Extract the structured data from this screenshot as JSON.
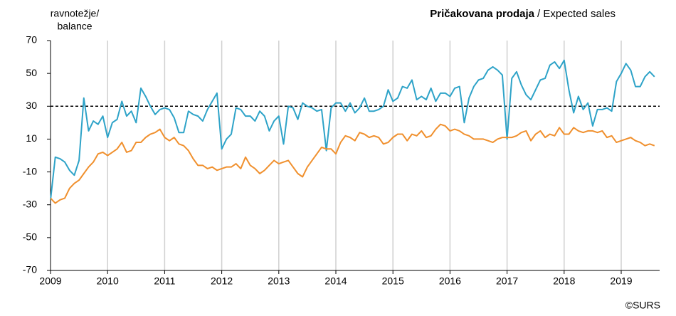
{
  "chart_data": {
    "type": "line",
    "title": {
      "main": "Pričakovana prodaja",
      "sub": "/ Expected sales"
    },
    "y_label": [
      "ravnotežje/",
      "balance"
    ],
    "source": "©SURS",
    "categories": [
      "2009",
      null,
      null,
      null,
      null,
      null,
      null,
      null,
      null,
      null,
      null,
      null,
      "2010",
      null,
      null,
      null,
      null,
      null,
      null,
      null,
      null,
      null,
      null,
      null,
      "2011",
      null,
      null,
      null,
      null,
      null,
      null,
      null,
      null,
      null,
      null,
      null,
      "2012",
      null,
      null,
      null,
      null,
      null,
      null,
      null,
      null,
      null,
      null,
      null,
      "2013",
      null,
      null,
      null,
      null,
      null,
      null,
      null,
      null,
      null,
      null,
      null,
      "2014",
      null,
      null,
      null,
      null,
      null,
      null,
      null,
      null,
      null,
      null,
      null,
      "2015",
      null,
      null,
      null,
      null,
      null,
      null,
      null,
      null,
      null,
      null,
      null,
      "2016",
      null,
      null,
      null,
      null,
      null,
      null,
      null,
      null,
      null,
      null,
      null,
      "2017",
      null,
      null,
      null,
      null,
      null,
      null,
      null,
      null,
      null,
      null,
      null,
      "2018",
      null,
      null,
      null,
      null,
      null,
      null,
      null,
      null,
      null,
      null,
      null,
      "2019",
      null,
      null,
      null,
      null,
      null,
      null,
      null
    ],
    "series": [
      {
        "color": "#2ea3c8",
        "values": [
          -27,
          -1,
          -2,
          -4,
          -9,
          -12,
          -3,
          35,
          15,
          21,
          19,
          24,
          11,
          20,
          22,
          33,
          24,
          27,
          20,
          41,
          36,
          30,
          25,
          28,
          29,
          28,
          23,
          14,
          14,
          27,
          25,
          24,
          21,
          28,
          33,
          38,
          4,
          10,
          13,
          29,
          28,
          24,
          24,
          21,
          27,
          24,
          15,
          21,
          24,
          7,
          30,
          29,
          22,
          32,
          30,
          29,
          27,
          28,
          3,
          29,
          32,
          32,
          27,
          32,
          26,
          29,
          35,
          27,
          27,
          28,
          30,
          40,
          33,
          35,
          42,
          41,
          46,
          34,
          36,
          34,
          41,
          33,
          38,
          38,
          36,
          41,
          42,
          20,
          35,
          42,
          46,
          47,
          52,
          54,
          52,
          49,
          10,
          47,
          51,
          43,
          37,
          34,
          40,
          46,
          47,
          55,
          57,
          53,
          58,
          40,
          26,
          36,
          28,
          32,
          18,
          28,
          28,
          29,
          27,
          45,
          50,
          56,
          52,
          42,
          42,
          48,
          51,
          48
        ]
      },
      {
        "color": "#f0902e",
        "values": [
          -26,
          -29,
          -27,
          -26,
          -20,
          -17,
          -15,
          -11,
          -7,
          -4,
          1,
          2,
          0,
          2,
          4,
          8,
          2,
          3,
          8,
          8,
          11,
          13,
          14,
          16,
          11,
          9,
          11,
          7,
          6,
          3,
          -2,
          -6,
          -6,
          -8,
          -7,
          -9,
          -8,
          -7,
          -7,
          -5,
          -8,
          -1,
          -6,
          -8,
          -11,
          -9,
          -6,
          -3,
          -5,
          -4,
          -3,
          -7,
          -11,
          -13,
          -7,
          -3,
          1,
          5,
          4,
          4,
          1,
          8,
          12,
          11,
          9,
          14,
          13,
          11,
          12,
          11,
          7,
          8,
          11,
          13,
          13,
          9,
          13,
          12,
          15,
          11,
          12,
          16,
          19,
          18,
          15,
          16,
          15,
          13,
          12,
          10,
          10,
          10,
          9,
          8,
          10,
          11,
          11,
          11,
          12,
          14,
          15,
          9,
          13,
          15,
          11,
          13,
          12,
          17,
          13,
          13,
          17,
          15,
          14,
          15,
          15,
          14,
          15,
          11,
          12,
          8,
          9,
          10,
          11,
          9,
          8,
          6,
          7,
          6
        ]
      }
    ],
    "reference_line": 30,
    "ylim": [
      -70,
      70
    ],
    "yticks": [
      -70,
      -50,
      -30,
      -10,
      10,
      30,
      50,
      70
    ],
    "grid": true
  }
}
